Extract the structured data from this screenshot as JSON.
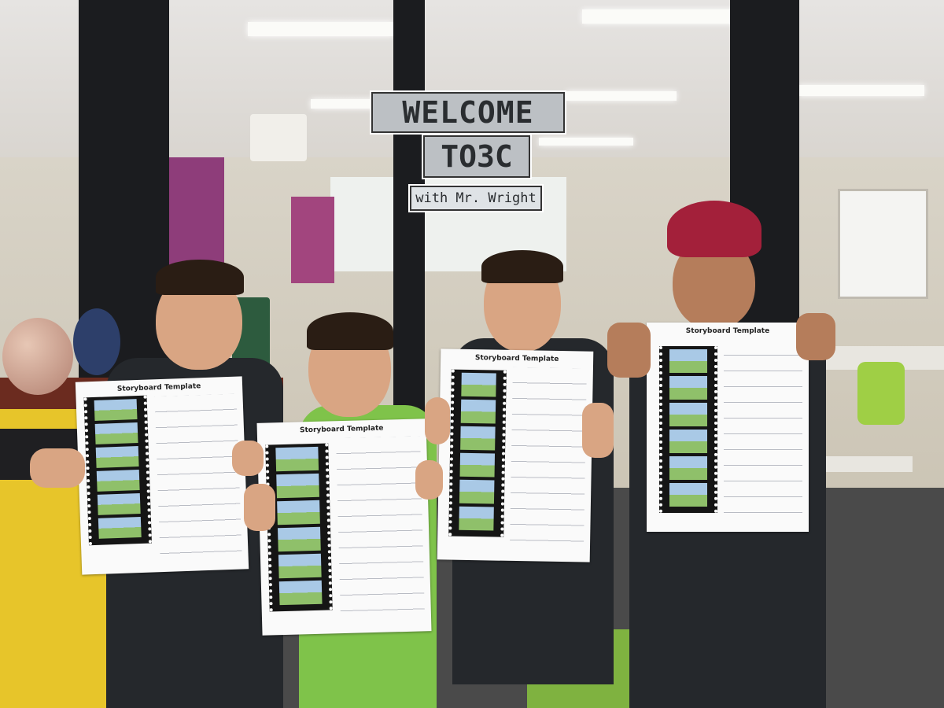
{
  "sign": {
    "line1": "WELCOME",
    "line2": "TO3C",
    "line3": "with Mr. Wright"
  },
  "papers": [
    {
      "title": "Storyboard Template"
    },
    {
      "title": "Storyboard Template"
    },
    {
      "title": "Storyboard Template"
    },
    {
      "title": "Storyboard Template"
    }
  ],
  "colors": {
    "pillar": "#1b1c1f",
    "counter": "#e7c52a",
    "turban": "#a3203a",
    "uniform_green": "#7fc34a"
  }
}
